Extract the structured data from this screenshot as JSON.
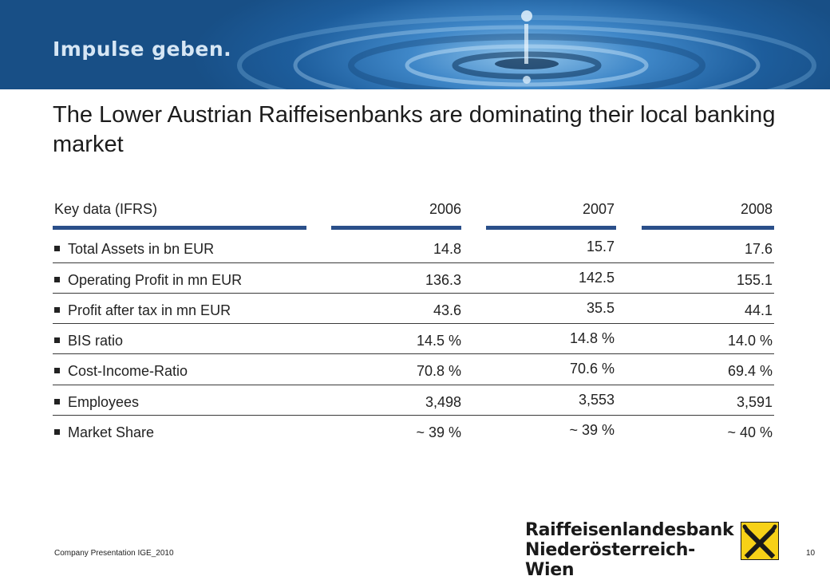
{
  "banner": {
    "tagline": "Impulse geben."
  },
  "title": "The Lower Austrian Raiffeisenbanks are dominating their local banking market",
  "table": {
    "header_label": "Key data (IFRS)",
    "years": [
      "2006",
      "2007",
      "2008"
    ],
    "rows": [
      {
        "label": "Total Assets in bn EUR",
        "values": [
          "14.8",
          "15.7",
          "17.6"
        ]
      },
      {
        "label": "Operating Profit in mn EUR",
        "values": [
          "136.3",
          "142.5",
          "155.1"
        ]
      },
      {
        "label": "Profit after tax in mn EUR",
        "values": [
          "43.6",
          "35.5",
          "44.1"
        ]
      },
      {
        "label": "BIS ratio",
        "values": [
          "14.5 %",
          "14.8 %",
          "14.0 %"
        ]
      },
      {
        "label": "Cost-Income-Ratio",
        "values": [
          "70.8 %",
          "70.6 %",
          "69.4 %"
        ]
      },
      {
        "label": "Employees",
        "values": [
          "3,498",
          "3,553",
          "3,591"
        ]
      },
      {
        "label": "Market Share",
        "values": [
          "~ 39 %",
          "~ 39 %",
          "~ 40 %"
        ]
      }
    ]
  },
  "footer": {
    "text": "Company Presentation IGE_2010",
    "page": "10"
  },
  "logo": {
    "line1": "Raiffeisenlandesbank",
    "line2": "Niederösterreich-Wien"
  },
  "colors": {
    "accent_bar": "#2a4f8a",
    "logo_yellow": "#f7d117"
  }
}
